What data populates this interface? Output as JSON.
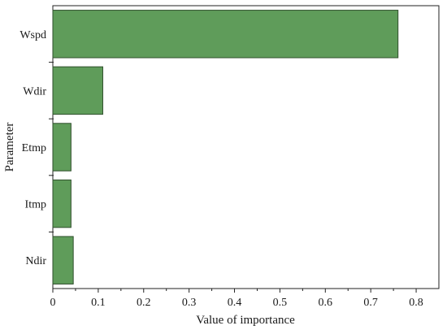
{
  "chart_data": {
    "type": "bar",
    "orientation": "horizontal",
    "categories": [
      "Wspd",
      "Wdir",
      "Etmp",
      "Itmp",
      "Ndir"
    ],
    "values": [
      0.76,
      0.11,
      0.04,
      0.04,
      0.045
    ],
    "xlabel": "Value of importance",
    "ylabel": "Parameter",
    "xlim": [
      0,
      0.85
    ],
    "xticks": [
      "0",
      "0.1",
      "0.2",
      "0.3",
      "0.4",
      "0.5",
      "0.6",
      "0.7",
      "0.8"
    ],
    "grid": false,
    "legend": "none",
    "colors": {
      "bar_fill": "#5f9c5a",
      "bar_stroke": "#2f4f2c",
      "axis": "#222222"
    }
  }
}
